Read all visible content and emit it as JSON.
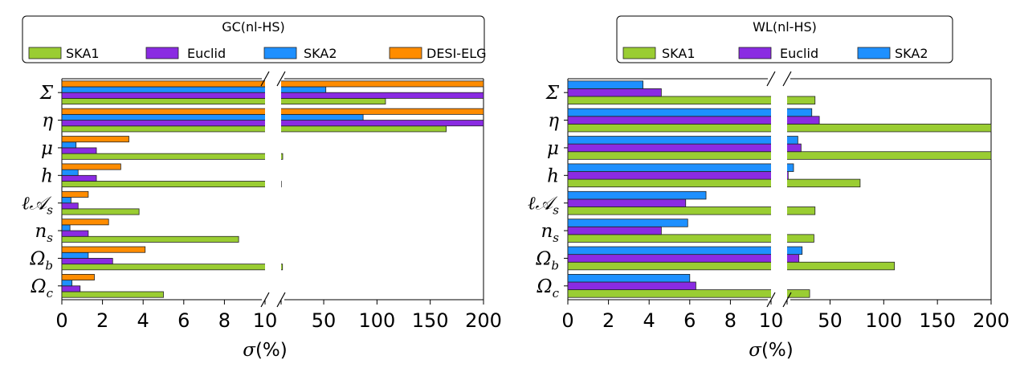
{
  "chart_data": [
    {
      "type": "bar",
      "orientation": "horizontal",
      "title": "GC(nl-HS)",
      "xlabel": "σ(%)",
      "xlabel_parts": {
        "sym": "σ",
        "open": "(",
        "unit": "%",
        "close": ")"
      },
      "x_axis": "broken: linear 0–10 left segment, linear 10–200 right segment",
      "xticks_left": [
        "0",
        "2",
        "4",
        "6",
        "8",
        "10"
      ],
      "xticks_right": [
        "50",
        "100",
        "150",
        "200"
      ],
      "categories": [
        {
          "key": "Sigma",
          "sym": "Σ",
          "sub": ""
        },
        {
          "key": "eta",
          "sym": "η",
          "sub": ""
        },
        {
          "key": "mu",
          "sym": "μ",
          "sub": ""
        },
        {
          "key": "h",
          "sym": "h",
          "sub": ""
        },
        {
          "key": "lAs",
          "sym": "ℓ𝒜",
          "sub": "s"
        },
        {
          "key": "ns",
          "sym": "n",
          "sub": "s"
        },
        {
          "key": "Omegab",
          "sym": "Ω",
          "sub": "b"
        },
        {
          "key": "Omegac",
          "sym": "Ω",
          "sub": "c"
        }
      ],
      "series": [
        {
          "name": "SKA1",
          "color": "#9acd32",
          "values": [
            108,
            165,
            11.5,
            10.2,
            3.8,
            8.7,
            11.3,
            5.0
          ]
        },
        {
          "name": "Euclid",
          "color": "#8a2be2",
          "values": [
            200,
            200,
            1.7,
            1.7,
            0.8,
            1.3,
            2.5,
            0.9
          ]
        },
        {
          "name": "SKA2",
          "color": "#1e90ff",
          "values": [
            52,
            87,
            0.7,
            0.8,
            0.45,
            0.4,
            1.3,
            0.5
          ]
        },
        {
          "name": "DESI-ELG",
          "color": "#ff8c00",
          "values": [
            200,
            200,
            3.3,
            2.9,
            1.3,
            2.3,
            4.1,
            1.6
          ]
        }
      ],
      "legend": "top"
    },
    {
      "type": "bar",
      "orientation": "horizontal",
      "title": "WL(nl-HS)",
      "xlabel": "σ(%)",
      "xlabel_parts": {
        "sym": "σ",
        "open": "(",
        "unit": "%",
        "close": ")"
      },
      "x_axis": "broken: linear 0–10 left segment, linear 10–200 right segment",
      "xticks_left": [
        "0",
        "2",
        "4",
        "6",
        "8",
        "10"
      ],
      "xticks_right": [
        "50",
        "100",
        "150",
        "200"
      ],
      "categories": [
        {
          "key": "Sigma",
          "sym": "Σ",
          "sub": ""
        },
        {
          "key": "eta",
          "sym": "η",
          "sub": ""
        },
        {
          "key": "mu",
          "sym": "μ",
          "sub": ""
        },
        {
          "key": "h",
          "sym": "h",
          "sub": ""
        },
        {
          "key": "lAs",
          "sym": "ℓ𝒜",
          "sub": "s"
        },
        {
          "key": "ns",
          "sym": "n",
          "sub": "s"
        },
        {
          "key": "Omegab",
          "sym": "Ω",
          "sub": "b"
        },
        {
          "key": "Omegac",
          "sym": "Ω",
          "sub": "c"
        }
      ],
      "series": [
        {
          "name": "SKA1",
          "color": "#9acd32",
          "values": [
            36,
            200,
            200,
            78,
            36,
            35,
            110,
            31
          ]
        },
        {
          "name": "Euclid",
          "color": "#8a2be2",
          "values": [
            4.6,
            40,
            23,
            11,
            5.8,
            4.6,
            21,
            6.3
          ]
        },
        {
          "name": "SKA2",
          "color": "#1e90ff",
          "values": [
            3.7,
            33,
            20,
            16,
            6.8,
            5.9,
            24,
            6.0
          ]
        }
      ],
      "legend": "top"
    }
  ]
}
